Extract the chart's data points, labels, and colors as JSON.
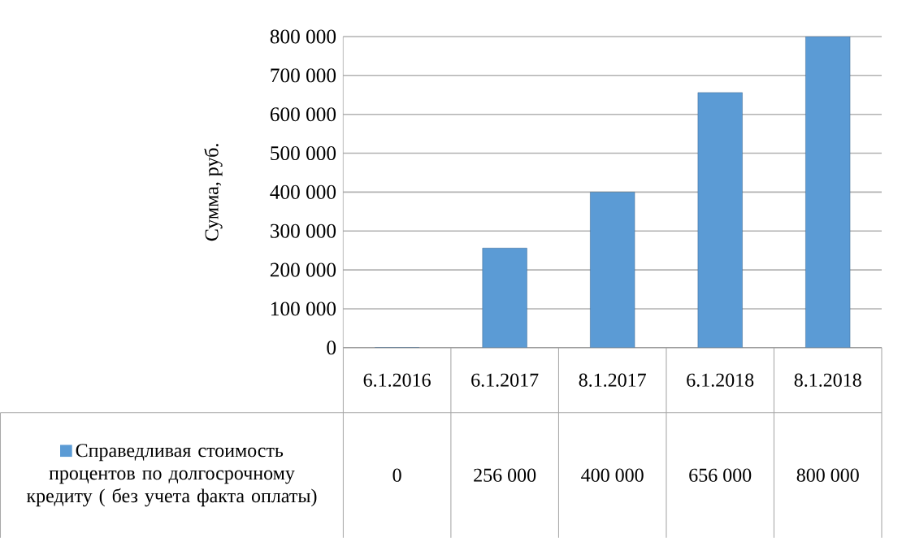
{
  "chart_data": {
    "type": "bar",
    "ylabel": "Сумма, руб.",
    "categories": [
      "6.1.2016",
      "6.1.2017",
      "8.1.2017",
      "6.1.2018",
      "8.1.2018"
    ],
    "series": [
      {
        "name": "Справедливая стоимость процентов по долгосрочному кредиту ( без учета факта оплаты)",
        "color": "#5b9bd5",
        "values": [
          0,
          256000,
          400000,
          656000,
          800000
        ],
        "value_labels": [
          "0",
          "256 000",
          "400 000",
          "656 000",
          "800 000"
        ]
      }
    ],
    "ylim": [
      0,
      800000
    ],
    "yticks": [
      {
        "value": 0,
        "label": "0"
      },
      {
        "value": 100000,
        "label": "100 000"
      },
      {
        "value": 200000,
        "label": "200 000"
      },
      {
        "value": 300000,
        "label": "300 000"
      },
      {
        "value": 400000,
        "label": "400 000"
      },
      {
        "value": 500000,
        "label": "500 000"
      },
      {
        "value": 600000,
        "label": "600 000"
      },
      {
        "value": 700000,
        "label": "700 000"
      },
      {
        "value": 800000,
        "label": "800 000"
      }
    ],
    "grid": "y",
    "legend": "bottom left"
  }
}
